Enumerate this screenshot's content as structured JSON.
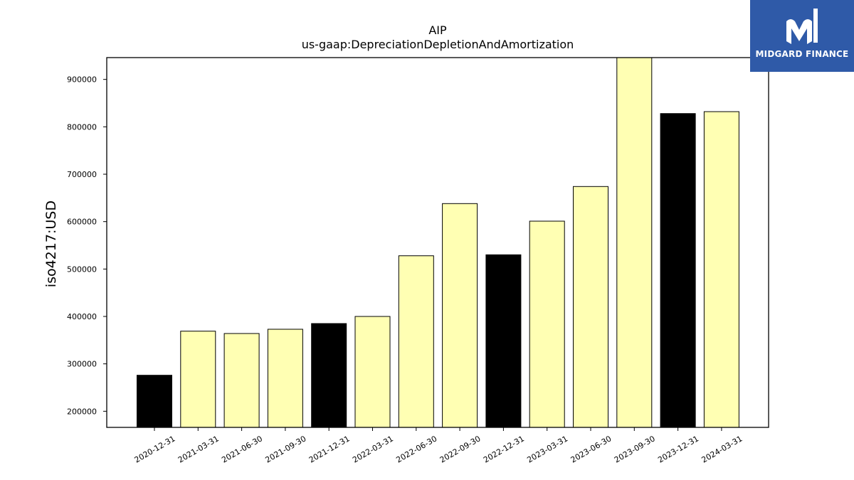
{
  "logo": {
    "text": "MIDGARD FINANCE",
    "background": "#2f5aa8",
    "icon": "midgard-m-logo-icon"
  },
  "chart_data": {
    "type": "bar",
    "title": "AIP",
    "subtitle": "us-gaap:DepreciationDepletionAndAmortization",
    "xlabel": "",
    "ylabel": "iso4217:USD",
    "ylim": [
      166000,
      946000
    ],
    "yticks": [
      200000,
      300000,
      400000,
      500000,
      600000,
      700000,
      800000,
      900000
    ],
    "grid": false,
    "legend": "none",
    "categories": [
      "2020-12-31",
      "2021-03-31",
      "2021-06-30",
      "2021-09-30",
      "2021-12-31",
      "2022-03-31",
      "2022-06-30",
      "2022-09-30",
      "2022-12-31",
      "2023-03-31",
      "2023-06-30",
      "2023-09-30",
      "2023-12-31",
      "2024-03-31"
    ],
    "values": [
      276000,
      369000,
      364000,
      373000,
      385000,
      400000,
      528000,
      638000,
      530000,
      601000,
      674000,
      946000,
      828000,
      832000
    ],
    "colors": [
      "#000000",
      "#ffffb3",
      "#ffffb3",
      "#ffffb3",
      "#000000",
      "#ffffb3",
      "#ffffb3",
      "#ffffb3",
      "#000000",
      "#ffffb3",
      "#ffffb3",
      "#ffffb3",
      "#000000",
      "#ffffb3"
    ]
  }
}
